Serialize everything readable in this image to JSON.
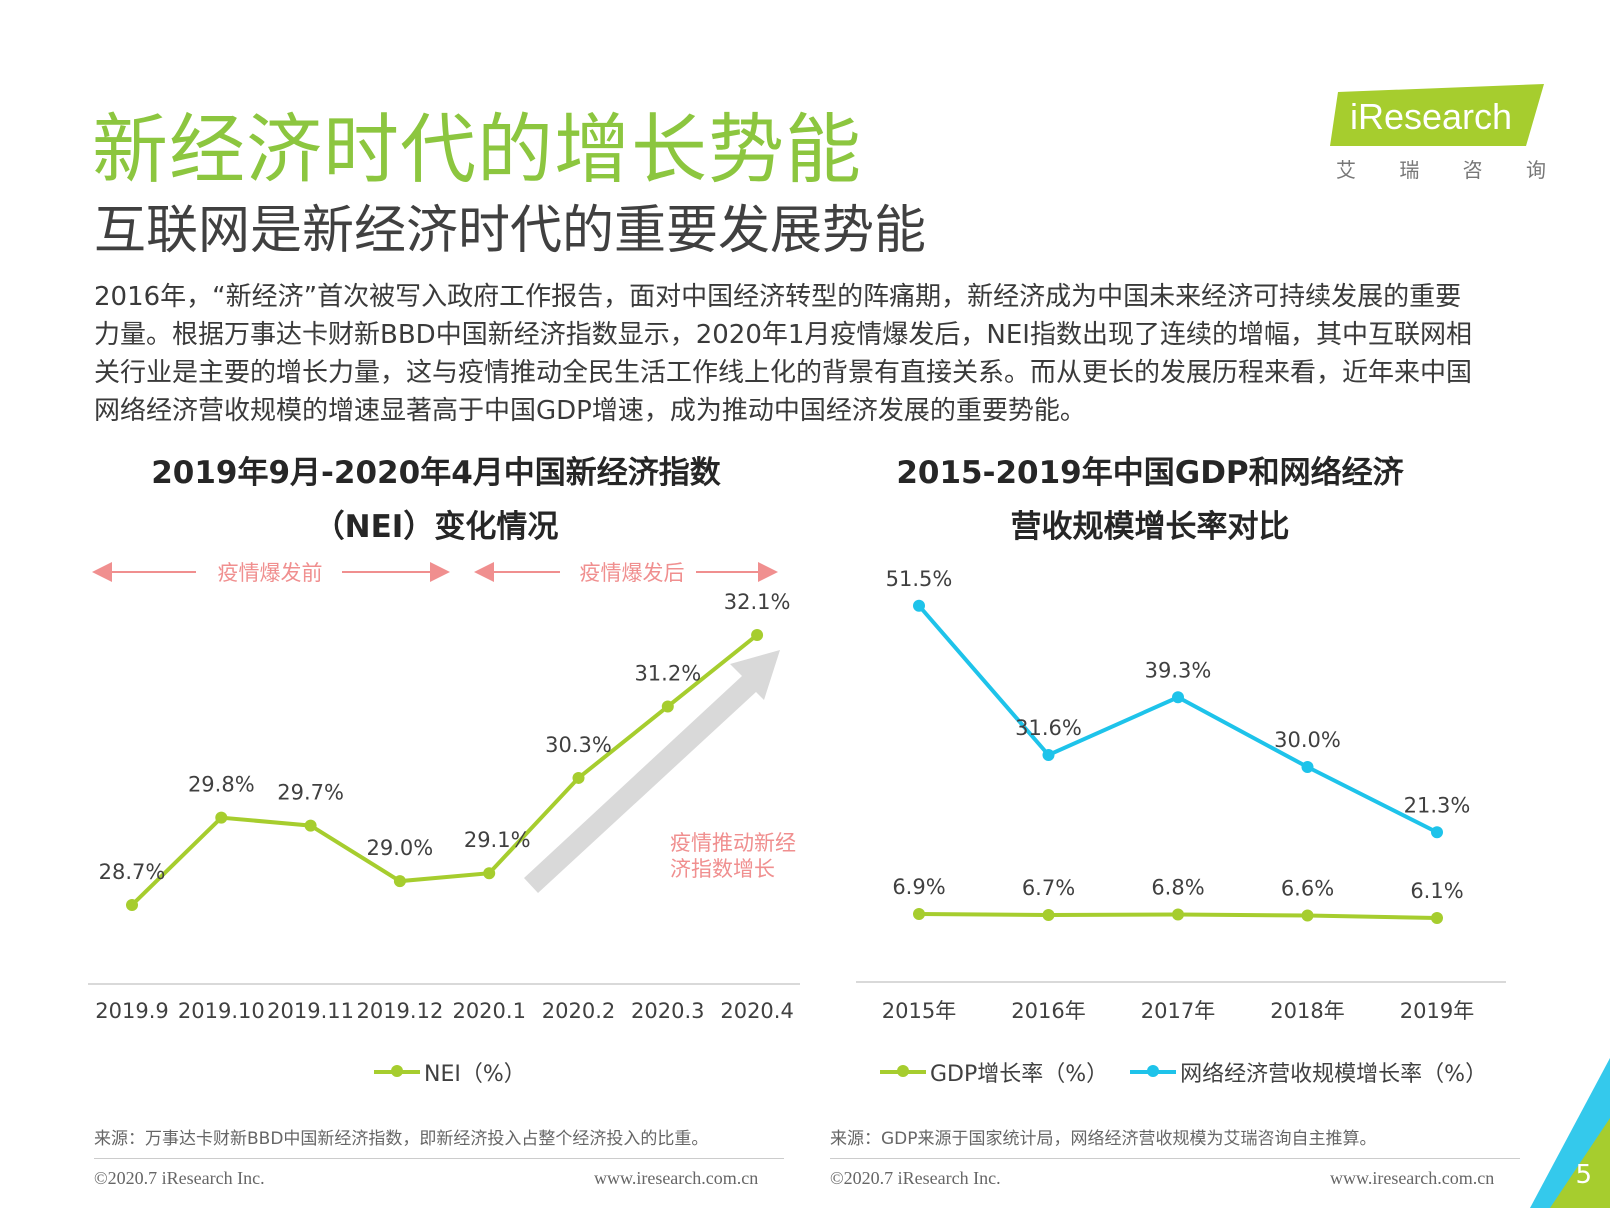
{
  "page": {
    "title": "新经济时代的增长势能",
    "subtitle": "互联网是新经济时代的重要发展势能",
    "paragraph": [
      "2016年，“新经济”首次被写入政府工作报告，面对中国经济转型的阵痛期，新经济成为中国未来经济可持续发展的重要",
      "力量。根据万事达卡财新BBD中国新经济指数显示，2020年1月疫情爆发后，NEI指数出现了连续的增幅，其中互联网相",
      "关行业是主要的增长力量，这与疫情推动全民生活工作线上化的背景有直接关系。而从更长的发展历程来看，近年来中国",
      "网络经济营收规模的增速显著高于中国GDP增速，成为推动中国经济发展的重要势能。"
    ],
    "page_number": "5"
  },
  "logo": {
    "name": "iResearch",
    "cn_chars": [
      "艾",
      "瑞",
      "咨",
      "询"
    ]
  },
  "colors": {
    "title_green": "#8cc63f",
    "nei_line": "#a6cd2e",
    "internet_line": "#1ec3ea",
    "annotation_pink": "#f08f8f",
    "arrow_gray": "#d9d9d9"
  },
  "chart_data": [
    {
      "type": "line",
      "title_line1": "2019年9月-2020年4月中国新经济指数",
      "title_line2": "（NEI）变化情况",
      "categories": [
        "2019.9",
        "2019.10",
        "2019.11",
        "2019.12",
        "2020.1",
        "2020.2",
        "2020.3",
        "2020.4"
      ],
      "series": [
        {
          "name": "NEI（%）",
          "values": [
            28.7,
            29.8,
            29.7,
            29.0,
            29.1,
            30.3,
            31.2,
            32.1
          ],
          "labels": [
            "28.7%",
            "29.8%",
            "29.7%",
            "29.0%",
            "29.1%",
            "30.3%",
            "31.2%",
            "32.1%"
          ]
        }
      ],
      "ylim": [
        28.0,
        32.5
      ],
      "annotations": {
        "before": "疫情爆发前",
        "after": "疫情爆发后",
        "trend_line1": "疫情推动新经",
        "trend_line2": "济指数增长"
      },
      "source": "来源：万事达卡财新BBD中国新经济指数，即新经济投入占整个经济投入的比重。"
    },
    {
      "type": "line",
      "title_line1": "2015-2019年中国GDP和网络经济",
      "title_line2": "营收规模增长率对比",
      "categories": [
        "2015年",
        "2016年",
        "2017年",
        "2018年",
        "2019年"
      ],
      "series": [
        {
          "name": "GDP增长率（%）",
          "values": [
            6.9,
            6.7,
            6.8,
            6.6,
            6.1
          ],
          "labels": [
            "6.9%",
            "6.7%",
            "6.8%",
            "6.6%",
            "6.1%"
          ]
        },
        {
          "name": "网络经济营收规模增长率（%）",
          "values": [
            51.5,
            31.6,
            39.3,
            30.0,
            21.3
          ],
          "labels": [
            "51.5%",
            "31.6%",
            "39.3%",
            "30.0%",
            "21.3%"
          ]
        }
      ],
      "ylim": [
        0,
        55
      ],
      "source": "来源：GDP来源于国家统计局，网络经济营收规模为艾瑞咨询自主推算。"
    }
  ],
  "footer": {
    "copyright": "©2020.7 iResearch Inc.",
    "website": "www.iresearch.com.cn"
  }
}
